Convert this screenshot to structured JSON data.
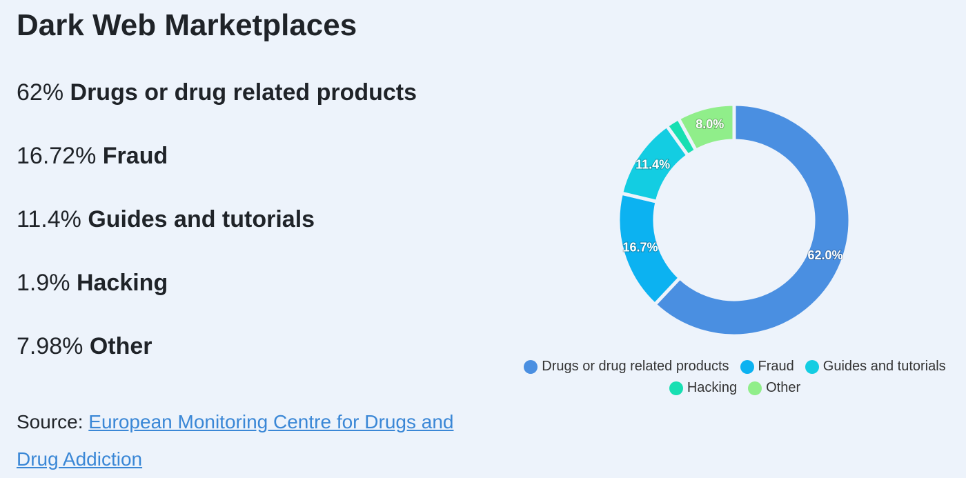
{
  "title": "Dark Web Marketplaces",
  "items": [
    {
      "share": "62%",
      "name": "Drugs or drug related products"
    },
    {
      "share": "16.72%",
      "name": "Fraud"
    },
    {
      "share": "11.4%",
      "name": "Guides and tutorials"
    },
    {
      "share": "1.9%",
      "name": "Hacking"
    },
    {
      "share": "7.98%",
      "name": "Other"
    }
  ],
  "source": {
    "label": "Source:",
    "link": "European Monitoring Centre for Drugs and Drug Addiction"
  },
  "chart_data": {
    "type": "donut",
    "categories": [
      "Drugs or drug related products",
      "Fraud",
      "Guides and tutorials",
      "Hacking",
      "Other"
    ],
    "values": [
      62,
      16.72,
      11.4,
      1.9,
      7.98
    ],
    "value_labels": [
      "62.0%",
      "16.7%",
      "11.4%",
      null,
      "8.0%"
    ],
    "colors": [
      "#4a8fe1",
      "#0cb2f1",
      "#13cde2",
      "#17dfb2",
      "#90ee8a"
    ]
  }
}
